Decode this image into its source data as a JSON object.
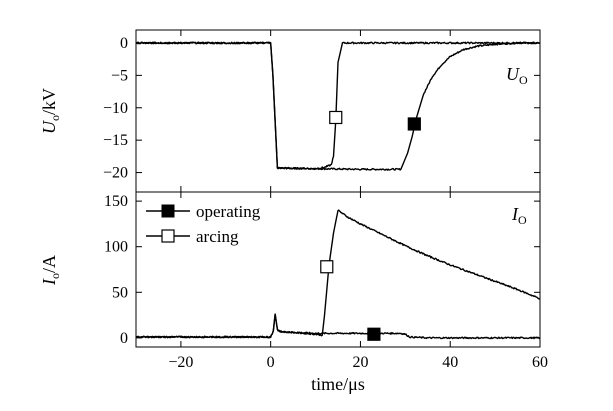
{
  "chart_data": [
    {
      "type": "line",
      "panel": "top",
      "panel_label": {
        "main": "U",
        "sub": "O"
      },
      "ylabel": {
        "main": "U",
        "sub": "o",
        "unit": "/kV"
      },
      "xlim": [
        -30,
        60
      ],
      "ylim": [
        -23,
        2
      ],
      "yticks": [
        0,
        -5,
        -10,
        -15,
        -20
      ],
      "xticks": [
        -20,
        0,
        20,
        40,
        60
      ],
      "series": [
        {
          "marker": "filled-square",
          "x": [
            -30,
            0,
            0.5,
            1.5,
            10,
            20,
            29,
            30.5,
            31.5,
            32.5,
            34,
            36,
            38,
            40,
            43,
            46,
            50,
            55,
            60
          ],
          "y": [
            0,
            0,
            -5,
            -19.3,
            -19.4,
            -19.5,
            -19.5,
            -17,
            -14.5,
            -11.5,
            -8,
            -5.2,
            -3.4,
            -2.1,
            -1.0,
            -0.5,
            -0.2,
            0,
            0
          ],
          "marker_at": {
            "x": 32,
            "y": -12.5
          }
        },
        {
          "marker": "open-square",
          "x": [
            -30,
            0,
            0.5,
            1.5,
            10,
            12,
            13.5,
            14,
            14.5,
            15,
            16,
            20,
            40,
            60
          ],
          "y": [
            0,
            0,
            -5,
            -19.3,
            -19.4,
            -19.2,
            -18.8,
            -17.5,
            -12,
            -3,
            0,
            0,
            0,
            0
          ],
          "marker_at": {
            "x": 14.5,
            "y": -11.5
          }
        }
      ]
    },
    {
      "type": "line",
      "panel": "bottom",
      "panel_label": {
        "main": "I",
        "sub": "O"
      },
      "ylabel": {
        "main": "I",
        "sub": "o",
        "unit": "/A"
      },
      "xlabel": "time/μs",
      "xlim": [
        -30,
        60
      ],
      "ylim": [
        -10,
        160
      ],
      "yticks": [
        0,
        50,
        100,
        150
      ],
      "xticks": [
        -20,
        0,
        20,
        40,
        60
      ],
      "series": [
        {
          "name": "operating",
          "marker": "filled-square",
          "x": [
            -30,
            0,
            0.6,
            1,
            1.5,
            2,
            5,
            10,
            15,
            20,
            25,
            29,
            30,
            31,
            35,
            40,
            60
          ],
          "y": [
            1,
            1,
            8,
            26,
            9,
            7,
            6,
            5,
            5,
            5,
            5,
            5,
            4,
            1,
            0,
            0,
            0
          ],
          "marker_at": {
            "x": 23,
            "y": 4
          }
        },
        {
          "name": "arcing",
          "marker": "open-square",
          "x": [
            -30,
            0,
            0.6,
            1,
            1.5,
            2,
            5,
            10,
            11.5,
            12,
            13,
            14,
            15,
            17,
            20,
            25,
            30,
            35,
            40,
            45,
            50,
            55,
            60
          ],
          "y": [
            1,
            1,
            8,
            26,
            9,
            7,
            6,
            4,
            3,
            25,
            80,
            115,
            140,
            133,
            125,
            113,
            101,
            90,
            80,
            71,
            62,
            53,
            43
          ],
          "marker_at": {
            "x": 12.5,
            "y": 78
          }
        }
      ]
    }
  ]
}
